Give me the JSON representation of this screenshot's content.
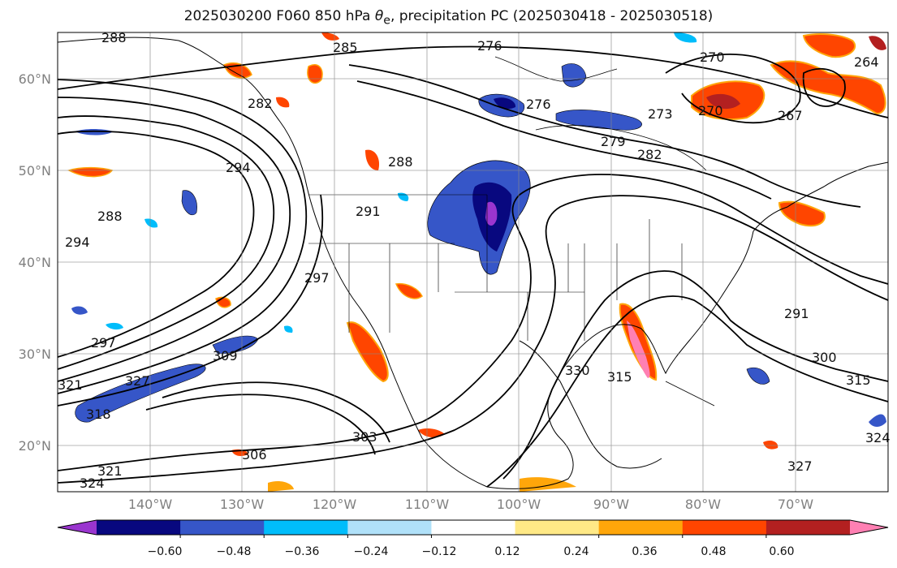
{
  "title_prefix": "2025030200 F060 850 hPa ",
  "title_symbol": "θ",
  "title_subscript": "e",
  "title_suffix": ", precipitation PC (2025030418 - 2025030518)",
  "lat_labels": [
    "60°N",
    "50°N",
    "40°N",
    "30°N",
    "20°N"
  ],
  "lon_labels": [
    "140°W",
    "130°W",
    "120°W",
    "110°W",
    "100°W",
    "90°W",
    "80°W",
    "70°W"
  ],
  "contour_labels": [
    "288",
    "285",
    "276",
    "270",
    "264",
    "282",
    "276",
    "273",
    "270",
    "267",
    "279",
    "282",
    "294",
    "288",
    "291",
    "288",
    "294",
    "297",
    "297",
    "309",
    "321",
    "318",
    "327",
    "303",
    "306",
    "321",
    "324",
    "330",
    "315",
    "291",
    "300",
    "315",
    "324",
    "327"
  ],
  "colorbar": {
    "ticks": [
      "−0.60",
      "−0.48",
      "−0.36",
      "−0.24",
      "−0.12",
      "0.12",
      "0.24",
      "0.36",
      "0.48",
      "0.60"
    ],
    "colors": [
      "#9a35cf",
      "#08087f",
      "#3656c8",
      "#00bdfb",
      "#b0e1f9",
      "#ffffff",
      "#ffe986",
      "#ffa60a",
      "#ff4500",
      "#b32020",
      "#ff80b3"
    ]
  }
}
